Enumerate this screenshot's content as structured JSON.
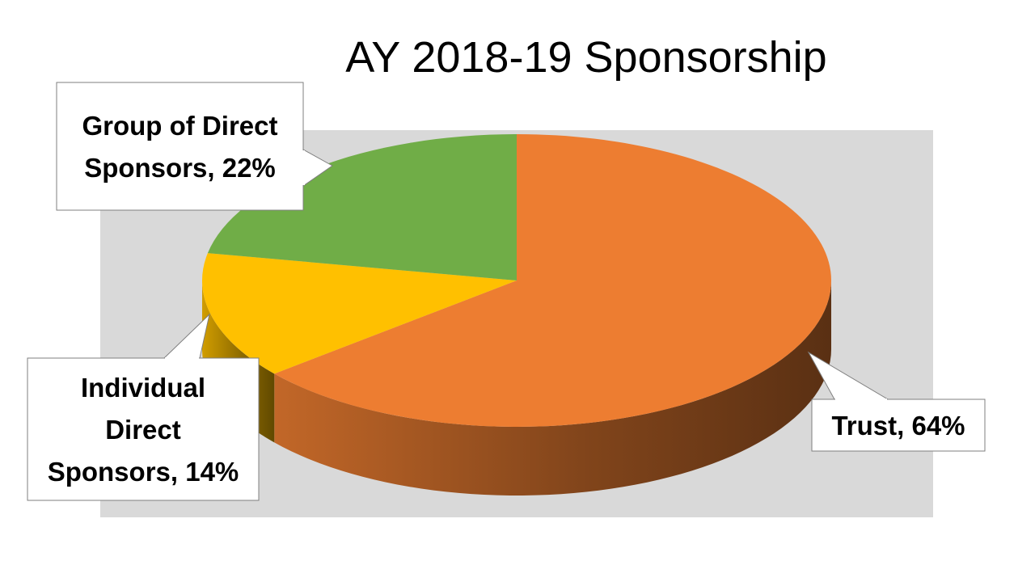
{
  "chart_data": {
    "type": "pie",
    "title": "AY 2018-19 Sponsorship",
    "slices": [
      {
        "label": "Trust",
        "value": 64,
        "display": "Trust, 64%",
        "color": "#ed7d31"
      },
      {
        "label": "Individual Direct Sponsors",
        "value": 14,
        "display": "Individual Direct Sponsors, 14%",
        "color": "#ffc000"
      },
      {
        "label": "Group of Direct Sponsors",
        "value": 22,
        "display": "Group of Direct Sponsors, 22%",
        "color": "#70ad47"
      }
    ],
    "style": "3d",
    "legend": "none",
    "data_labels": "callouts"
  }
}
